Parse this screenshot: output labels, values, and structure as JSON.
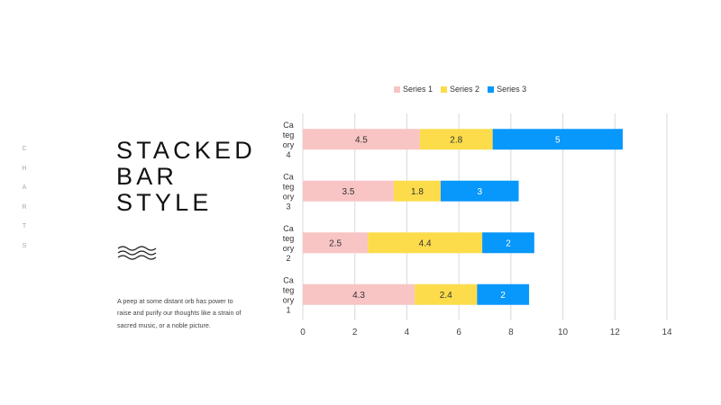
{
  "side_letters": [
    "C",
    "H",
    "A",
    "R",
    "T",
    "S"
  ],
  "title_lines": [
    "STACKED",
    "BAR",
    "STYLE"
  ],
  "body_text": "A peep at some distant orb has power to raise and purify our thoughts like a strain of sacred music, or a noble picture.",
  "chart_data": {
    "type": "bar",
    "orientation": "horizontal",
    "stacked": true,
    "categories": [
      "Category 1",
      "Category 2",
      "Category 3",
      "Category 4"
    ],
    "category_label_lines": [
      [
        "Ca",
        "teg",
        "ory",
        "1"
      ],
      [
        "Ca",
        "teg",
        "ory",
        "2"
      ],
      [
        "Ca",
        "teg",
        "ory",
        "3"
      ],
      [
        "Ca",
        "teg",
        "ory",
        "4"
      ]
    ],
    "series": [
      {
        "name": "Series 1",
        "values": [
          4.3,
          2.5,
          3.5,
          4.5
        ],
        "color": "#f9c4c4"
      },
      {
        "name": "Series 2",
        "values": [
          2.4,
          4.4,
          1.8,
          2.8
        ],
        "color": "#fcdc4b"
      },
      {
        "name": "Series 3",
        "values": [
          2,
          2,
          3,
          5
        ],
        "color": "#0897fb"
      }
    ],
    "xlim": [
      0,
      14
    ],
    "xticks": [
      0,
      2,
      4,
      6,
      8,
      10,
      12,
      14
    ],
    "grid": true,
    "legend_position": "top",
    "data_labels": true
  }
}
